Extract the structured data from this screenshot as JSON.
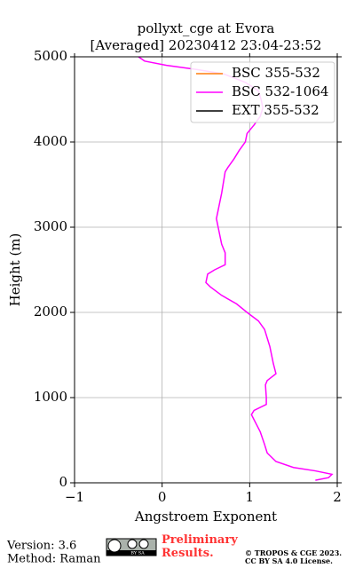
{
  "chart_data": {
    "type": "line",
    "title": "pollyxt_cge at Evora",
    "subtitle": "[Averaged] 20230412 23:04-23:52",
    "x_label": "Angstroem Exponent",
    "y_label": "Height (m)",
    "orientation": "vertical-profile",
    "y": [
      30,
      60,
      100,
      140,
      180,
      250,
      350,
      450,
      600,
      700,
      800,
      850,
      920,
      1000,
      1150,
      1200,
      1280,
      1400,
      1600,
      1800,
      1900,
      2000,
      2100,
      2200,
      2300,
      2350,
      2450,
      2500,
      2560,
      2700,
      2800,
      3000,
      3100,
      3200,
      3400,
      3650,
      3700,
      3800,
      3900,
      4000,
      4100,
      4200,
      4300,
      4400,
      4500,
      4600,
      4700,
      4800,
      4850,
      4900,
      4950,
      5000
    ],
    "series": [
      {
        "name": "BSC 355-532",
        "color": "#ff7f0e",
        "values": [
          null,
          null,
          null,
          null,
          null,
          null,
          null,
          null,
          null,
          null,
          null,
          null,
          null,
          null,
          null,
          null,
          null,
          null,
          null,
          null,
          null,
          null,
          null,
          null,
          null,
          null,
          null,
          null,
          null,
          null,
          null,
          null,
          null,
          null,
          null,
          null,
          null,
          null,
          null,
          null,
          null,
          null,
          null,
          null,
          null,
          null,
          null,
          null,
          null,
          null,
          null,
          null
        ]
      },
      {
        "name": "BSC 532-1064",
        "color": "#ff00ff",
        "values": [
          1.75,
          1.9,
          1.94,
          1.75,
          1.5,
          1.3,
          1.2,
          1.17,
          1.12,
          1.07,
          1.02,
          1.05,
          1.19,
          1.19,
          1.18,
          1.2,
          1.3,
          1.27,
          1.23,
          1.17,
          1.1,
          0.97,
          0.85,
          0.68,
          0.55,
          0.5,
          0.52,
          0.6,
          0.72,
          0.72,
          0.68,
          0.64,
          0.62,
          0.64,
          0.68,
          0.72,
          0.75,
          0.82,
          0.88,
          0.95,
          0.97,
          1.05,
          1.12,
          1.15,
          1.13,
          1.1,
          0.95,
          0.7,
          0.4,
          0.05,
          -0.2,
          -0.27
        ]
      },
      {
        "name": "EXT 355-532",
        "color": "#000000",
        "values": [
          null,
          null,
          null,
          null,
          null,
          null,
          null,
          null,
          null,
          null,
          null,
          null,
          null,
          null,
          null,
          null,
          null,
          null,
          null,
          null,
          null,
          null,
          null,
          null,
          null,
          null,
          null,
          null,
          null,
          null,
          null,
          null,
          null,
          null,
          null,
          null,
          null,
          null,
          null,
          null,
          null,
          null,
          null,
          null,
          null,
          null,
          null,
          null,
          null,
          null,
          null,
          null
        ]
      }
    ],
    "xlim": [
      -1,
      2
    ],
    "xticks": [
      {
        "value": -1,
        "label": "−1"
      },
      0,
      1,
      2
    ],
    "ylim": [
      0,
      5000
    ],
    "yticks": [
      0,
      1000,
      2000,
      3000,
      4000,
      5000
    ],
    "grid": true,
    "legend": "upper right"
  },
  "footer": {
    "version": "Version: 3.6",
    "method": "Method: Raman",
    "badge": "BY SA",
    "status": "Preliminary Results.",
    "copyright": "© TROPOS & CGE 2023.",
    "license": "CC BY SA 4.0 License."
  }
}
